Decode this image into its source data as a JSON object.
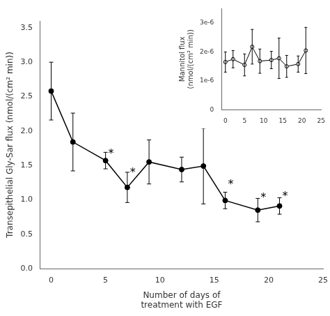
{
  "chart_data": [
    {
      "type": "line",
      "x_label": "Number of days of\ntreatment with EGF",
      "y_label": "Transepithelial Gly-Sar flux (nmol/(cm² min))",
      "x": [
        0,
        2,
        5,
        7,
        9,
        12,
        14,
        16,
        19,
        21
      ],
      "series": [
        {
          "color": "#000000",
          "marker": "circle",
          "line_style": "solid",
          "values": [
            2.58,
            1.84,
            1.57,
            1.18,
            1.55,
            1.44,
            1.49,
            0.99,
            0.85,
            0.91
          ],
          "yerr": [
            0.42,
            0.42,
            0.12,
            0.22,
            0.32,
            0.18,
            0.55,
            0.12,
            0.17,
            0.12
          ]
        }
      ],
      "annotations": [
        {
          "text": "*",
          "x": 5,
          "y": 1.7
        },
        {
          "text": "*",
          "x": 7,
          "y": 1.42
        },
        {
          "text": "*",
          "x": 16,
          "y": 1.25
        },
        {
          "text": "*",
          "x": 19,
          "y": 1.06
        },
        {
          "text": "*",
          "x": 21,
          "y": 1.08
        }
      ],
      "xlim": [
        -1,
        25
      ],
      "ylim": [
        0,
        3.6
      ],
      "xticks": [
        0,
        5,
        10,
        15,
        20,
        25
      ],
      "yticks": [
        {
          "value": 0.0,
          "label": "0.0"
        },
        {
          "value": 0.5,
          "label": "0.5"
        },
        {
          "value": 1.0,
          "label": "1.0"
        },
        {
          "value": 1.5,
          "label": "1.5"
        },
        {
          "value": 2.0,
          "label": "2.0"
        },
        {
          "value": 2.5,
          "label": "2.5"
        },
        {
          "value": 3.0,
          "label": "3.0"
        },
        {
          "value": 3.5,
          "label": "3.5"
        }
      ],
      "grid": false
    },
    {
      "type": "line",
      "y_label": "Mannitol flux\n(nmol/(cm² min))",
      "x": [
        0,
        2,
        5,
        7,
        9,
        12,
        14,
        16,
        19,
        21
      ],
      "series": [
        {
          "color": "#000000",
          "marker": "open_circle",
          "line_style": "solid",
          "values": [
            1.65e-06,
            1.75e-06,
            1.55e-06,
            2.18e-06,
            1.68e-06,
            1.72e-06,
            1.78e-06,
            1.5e-06,
            1.58e-06,
            2.05e-06
          ],
          "yerr": [
            3.5e-07,
            3e-07,
            3.8e-07,
            6e-07,
            4.2e-07,
            3e-07,
            7e-07,
            3.8e-07,
            2.8e-07,
            8e-07
          ]
        }
      ],
      "xlim": [
        -1,
        25
      ],
      "ylim": [
        0,
        3.5e-06
      ],
      "xticks": [
        0,
        5,
        10,
        15,
        20,
        25
      ],
      "yticks": [
        0,
        {
          "value": 1e-06,
          "label": "1e-6"
        },
        {
          "value": 2e-06,
          "label": "2e-6"
        },
        {
          "value": 3e-06,
          "label": "3e-6"
        }
      ],
      "grid": false
    }
  ]
}
